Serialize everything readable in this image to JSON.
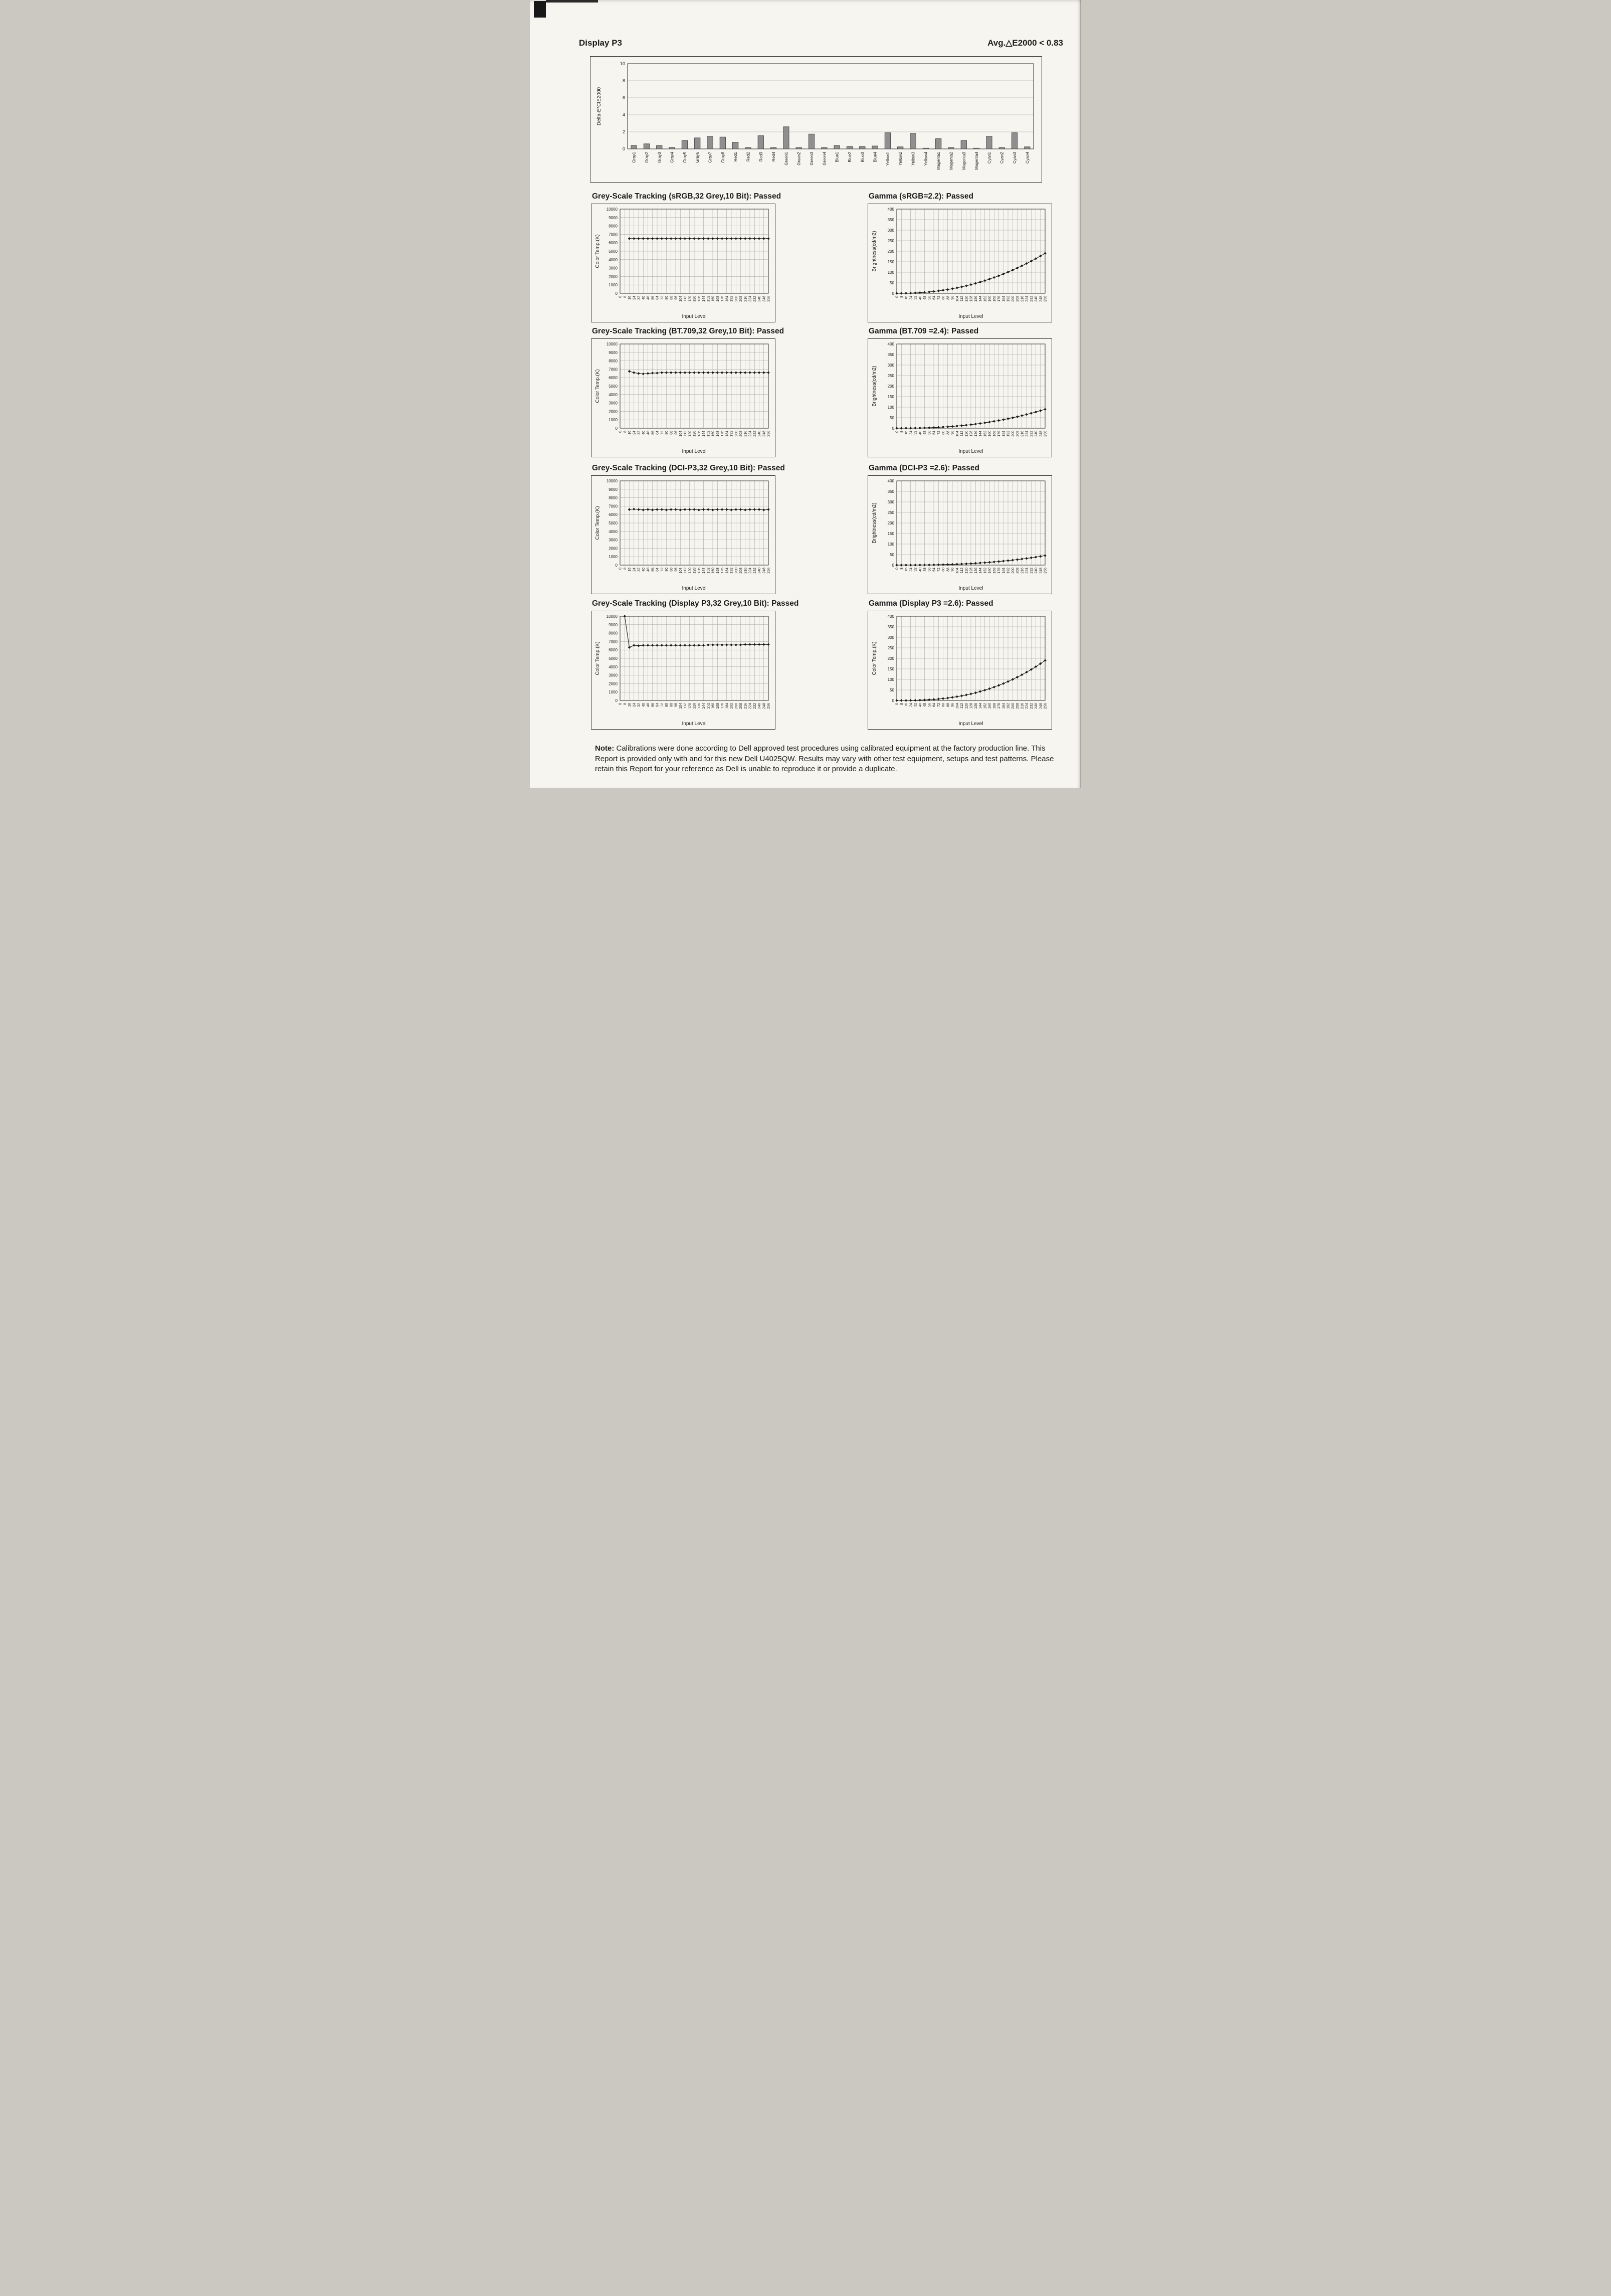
{
  "page": {
    "header_left": "Display P3",
    "header_right": "Avg.△E2000 < 0.83",
    "note_label": "Note:",
    "note_text": "Calibrations were done according to Dell approved test procedures using calibrated equipment at the factory production line. This Report is provided only with and for this new Dell U4025QW. Results may vary with other test equipment, setups and test patterns. Please retain this Report for your reference as Dell is unable to reproduce it or provide a duplicate."
  },
  "colors": {
    "bar_fill": "#8f8f8f",
    "bar_edge": "#3c3c3c",
    "line": "#1a1a1a",
    "grid": "#9a9a9a",
    "frame": "#2e2e2c",
    "paper": "#f7f5f0"
  },
  "chart_data": [
    {
      "id": "delta-e-cie2000",
      "type": "bar",
      "title": "",
      "xlabel": "",
      "ylabel": "Delta-E*CIE2000",
      "ylim": [
        0,
        10
      ],
      "ytick_step": 2,
      "categories": [
        "Gray1",
        "Gray2",
        "Gray3",
        "Gray4",
        "Gray5",
        "Gray6",
        "Gray7",
        "Gray8",
        "Red1",
        "Red2",
        "Red3",
        "Red4",
        "Green1",
        "Green2",
        "Green3",
        "Green4",
        "Blue1",
        "Blue2",
        "Blue3",
        "Blue4",
        "Yellow1",
        "Yellow2",
        "Yellow3",
        "Yellow4",
        "Magenta1",
        "Magenta2",
        "Magenta3",
        "Magenta4",
        "Cyan1",
        "Cyan2",
        "Cyan3",
        "Cyan4"
      ],
      "values": [
        0.4,
        0.6,
        0.4,
        0.2,
        1.0,
        1.3,
        1.5,
        1.4,
        0.8,
        0.15,
        1.55,
        0.15,
        2.6,
        0.15,
        1.75,
        0.15,
        0.4,
        0.3,
        0.3,
        0.35,
        1.9,
        0.25,
        1.85,
        0.1,
        1.2,
        0.15,
        1.0,
        0.1,
        1.5,
        0.15,
        1.9,
        0.25
      ]
    },
    {
      "id": "grey-scale-srgb",
      "type": "line",
      "title": "Grey-Scale Tracking (sRGB,32 Grey,10 Bit): Passed",
      "xlabel": "Input Level",
      "ylabel": "Color Temp.(K)",
      "xlim": [
        0,
        256
      ],
      "xtick_step": 8,
      "ylim": [
        0,
        10000
      ],
      "ytick_step": 1000,
      "x": [
        16,
        24,
        32,
        40,
        48,
        56,
        64,
        72,
        80,
        88,
        96,
        104,
        112,
        120,
        128,
        136,
        144,
        152,
        160,
        168,
        176,
        184,
        192,
        200,
        208,
        216,
        224,
        232,
        240,
        248,
        256
      ],
      "y": [
        6500,
        6500,
        6500,
        6500,
        6500,
        6500,
        6500,
        6500,
        6500,
        6500,
        6500,
        6500,
        6500,
        6500,
        6500,
        6500,
        6500,
        6500,
        6500,
        6500,
        6500,
        6500,
        6500,
        6500,
        6500,
        6500,
        6500,
        6500,
        6500,
        6500,
        6500
      ]
    },
    {
      "id": "gamma-srgb",
      "type": "line",
      "title": "Gamma (sRGB=2.2): Passed",
      "xlabel": "Input Level",
      "ylabel": "Brightness(cd/m2)",
      "xlim": [
        0,
        256
      ],
      "xtick_step": 8,
      "ylim": [
        0,
        400
      ],
      "ytick_step": 50,
      "x": [
        0,
        8,
        16,
        24,
        32,
        40,
        48,
        56,
        64,
        72,
        80,
        88,
        96,
        104,
        112,
        120,
        128,
        136,
        144,
        152,
        160,
        168,
        176,
        184,
        192,
        200,
        208,
        216,
        224,
        232,
        240,
        248,
        256
      ],
      "y": [
        0,
        0.1,
        0.4,
        1,
        2,
        3.2,
        4.8,
        6.7,
        9,
        11.7,
        14.7,
        18.1,
        22,
        26.2,
        30.8,
        35.9,
        41.4,
        47.3,
        53.6,
        60.3,
        67.6,
        75.2,
        83.3,
        91.9,
        100.9,
        110.4,
        120.3,
        130.7,
        141.6,
        153,
        164.8,
        177.2,
        190
      ]
    },
    {
      "id": "grey-scale-bt709",
      "type": "line",
      "title": "Grey-Scale Tracking (BT.709,32 Grey,10 Bit): Passed",
      "xlabel": "Input Level",
      "ylabel": "Color Temp.(K)",
      "xlim": [
        0,
        256
      ],
      "xtick_step": 8,
      "ylim": [
        0,
        10000
      ],
      "ytick_step": 1000,
      "x": [
        16,
        24,
        32,
        40,
        48,
        56,
        64,
        72,
        80,
        88,
        96,
        104,
        112,
        120,
        128,
        136,
        144,
        152,
        160,
        168,
        176,
        184,
        192,
        200,
        208,
        216,
        224,
        232,
        240,
        248,
        256
      ],
      "y": [
        6750,
        6600,
        6500,
        6450,
        6500,
        6550,
        6550,
        6600,
        6600,
        6600,
        6600,
        6600,
        6600,
        6600,
        6600,
        6600,
        6600,
        6600,
        6600,
        6600,
        6600,
        6600,
        6600,
        6600,
        6600,
        6600,
        6600,
        6600,
        6600,
        6600,
        6600
      ]
    },
    {
      "id": "gamma-bt709",
      "type": "line",
      "title": "Gamma (BT.709 =2.4): Passed",
      "xlabel": "Input Level",
      "ylabel": "Brightness(cd/m2)",
      "xlim": [
        0,
        256
      ],
      "xtick_step": 8,
      "ylim": [
        0,
        400
      ],
      "ytick_step": 50,
      "x": [
        0,
        8,
        16,
        24,
        32,
        40,
        48,
        56,
        64,
        72,
        80,
        88,
        96,
        104,
        112,
        120,
        128,
        136,
        144,
        152,
        160,
        168,
        176,
        184,
        192,
        200,
        208,
        216,
        224,
        232,
        240,
        248,
        256
      ],
      "y": [
        0,
        0.02,
        0.12,
        0.31,
        0.61,
        1.05,
        1.62,
        2.35,
        3.23,
        4.28,
        5.52,
        6.93,
        8.54,
        10.4,
        12.4,
        14.6,
        17,
        19.7,
        22.6,
        25.8,
        29.1,
        32.8,
        36.6,
        40.7,
        45.1,
        49.8,
        54.7,
        59.9,
        65.3,
        71.1,
        77.1,
        83.4,
        90
      ]
    },
    {
      "id": "grey-scale-dcip3",
      "type": "line",
      "title": "Grey-Scale Tracking (DCI-P3,32 Grey,10 Bit): Passed",
      "xlabel": "Input Level",
      "ylabel": "Color Temp.(K)",
      "xlim": [
        0,
        256
      ],
      "xtick_step": 8,
      "ylim": [
        0,
        10000
      ],
      "ytick_step": 1000,
      "x": [
        16,
        24,
        32,
        40,
        48,
        56,
        64,
        72,
        80,
        88,
        96,
        104,
        112,
        120,
        128,
        136,
        144,
        152,
        160,
        168,
        176,
        184,
        192,
        200,
        208,
        216,
        224,
        232,
        240,
        248,
        256
      ],
      "y": [
        6600,
        6650,
        6600,
        6550,
        6600,
        6550,
        6600,
        6600,
        6550,
        6600,
        6600,
        6550,
        6600,
        6600,
        6600,
        6550,
        6600,
        6600,
        6550,
        6600,
        6600,
        6600,
        6550,
        6600,
        6600,
        6550,
        6600,
        6600,
        6600,
        6550,
        6600
      ]
    },
    {
      "id": "gamma-dcip3",
      "type": "line",
      "title": "Gamma (DCI-P3 =2.6): Passed",
      "xlabel": "Input Level",
      "ylabel": "Brightness(cd/m2)",
      "xlim": [
        0,
        256
      ],
      "xtick_step": 8,
      "ylim": [
        0,
        400
      ],
      "ytick_step": 50,
      "x": [
        0,
        8,
        16,
        24,
        32,
        40,
        48,
        56,
        64,
        72,
        80,
        88,
        96,
        104,
        112,
        120,
        128,
        136,
        144,
        152,
        160,
        168,
        176,
        184,
        192,
        200,
        208,
        216,
        224,
        232,
        240,
        248,
        256
      ],
      "y": [
        0,
        0.01,
        0.03,
        0.1,
        0.2,
        0.36,
        0.58,
        0.86,
        1.22,
        1.66,
        2.19,
        2.8,
        3.51,
        4.32,
        5.24,
        6.26,
        7.4,
        8.69,
        10.1,
        11.6,
        13.3,
        15.1,
        17,
        19.1,
        21.3,
        23.7,
        26.2,
        28.9,
        31.8,
        34.8,
        38,
        41.4,
        45
      ]
    },
    {
      "id": "grey-scale-displayp3",
      "type": "line",
      "title": "Grey-Scale Tracking (Display P3,32 Grey,10 Bit): Passed",
      "xlabel": "Input Level",
      "ylabel": "Color Temp.(K)",
      "xlim": [
        0,
        256
      ],
      "xtick_step": 8,
      "ylim": [
        0,
        10000
      ],
      "ytick_step": 1000,
      "x": [
        8,
        16,
        24,
        32,
        40,
        48,
        56,
        64,
        72,
        80,
        88,
        96,
        104,
        112,
        120,
        128,
        136,
        144,
        152,
        160,
        168,
        176,
        184,
        192,
        200,
        208,
        216,
        224,
        232,
        240,
        248,
        256
      ],
      "y": [
        10000,
        6300,
        6550,
        6500,
        6550,
        6550,
        6550,
        6550,
        6550,
        6550,
        6550,
        6550,
        6550,
        6550,
        6550,
        6550,
        6550,
        6550,
        6600,
        6600,
        6600,
        6600,
        6600,
        6600,
        6600,
        6600,
        6650,
        6650,
        6650,
        6650,
        6650,
        6650
      ]
    },
    {
      "id": "gamma-displayp3",
      "type": "line",
      "title": "Gamma (Display P3 =2.6): Passed",
      "xlabel": "Input Level",
      "ylabel": "Color Temp.(K)",
      "xlim": [
        0,
        256
      ],
      "xtick_step": 8,
      "ylim": [
        0,
        400
      ],
      "ytick_step": 50,
      "x": [
        0,
        8,
        16,
        24,
        32,
        40,
        48,
        56,
        64,
        72,
        80,
        88,
        96,
        104,
        112,
        120,
        128,
        136,
        144,
        152,
        160,
        168,
        176,
        184,
        192,
        200,
        208,
        216,
        224,
        232,
        240,
        248,
        256
      ],
      "y": [
        0,
        0.02,
        0.14,
        0.4,
        0.86,
        1.52,
        2.45,
        3.65,
        5.17,
        7.03,
        9.23,
        11.8,
        14.8,
        18.2,
        22.1,
        26.4,
        31.3,
        36.7,
        42.6,
        49,
        56,
        63.6,
        71.8,
        80.5,
        89.9,
        100,
        110.7,
        122.2,
        134.3,
        147.1,
        160.6,
        174.9,
        190
      ]
    }
  ]
}
